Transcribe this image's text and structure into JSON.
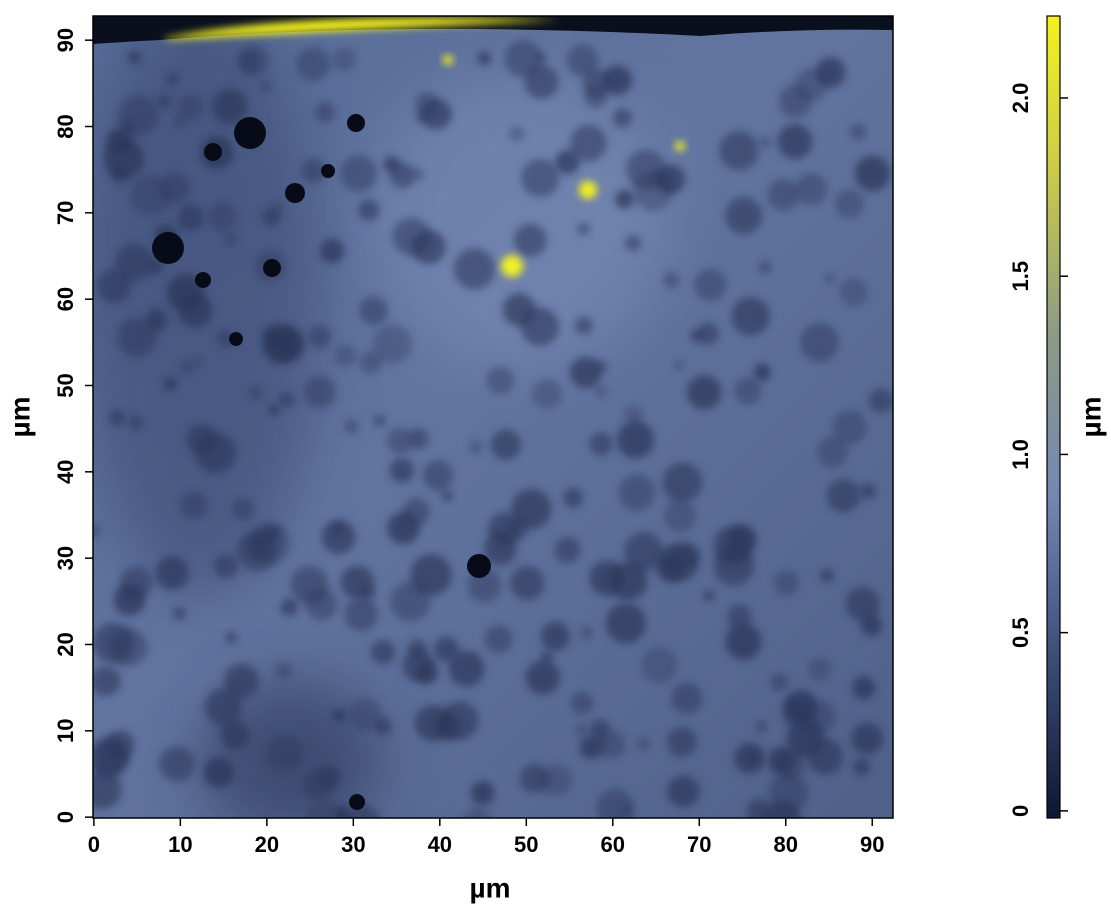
{
  "chart_data": {
    "type": "heatmap",
    "xlabel": "µm",
    "ylabel": "µm",
    "colorbar_label": "µm",
    "xlim": [
      -0.1,
      92.4
    ],
    "ylim": [
      -0.1,
      92.8
    ],
    "xticks": [
      0,
      10,
      20,
      30,
      40,
      50,
      60,
      70,
      80,
      90
    ],
    "yticks": [
      0,
      10,
      20,
      30,
      40,
      50,
      60,
      70,
      80,
      90
    ],
    "clim": [
      -0.02,
      2.23
    ],
    "cticks": [
      0,
      0.5,
      {
        "value": 1,
        "label": "1.0"
      },
      1.5,
      {
        "value": 2,
        "label": "2.0"
      }
    ],
    "colormap": [
      "#0d1733",
      "#3c4d78",
      "#7487b4",
      "#8b9a86",
      "#c9c94a",
      "#f4f21c"
    ]
  }
}
